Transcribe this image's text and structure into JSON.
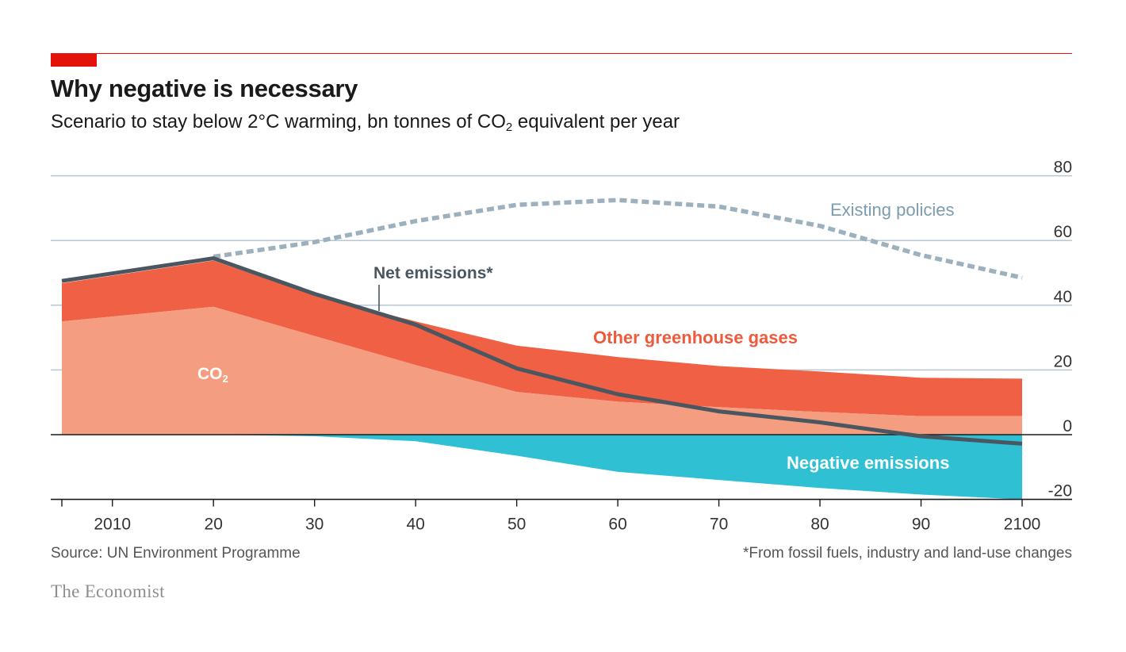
{
  "header": {
    "title": "Why negative is necessary",
    "subtitle_pre": "Scenario to stay below 2°C warming, bn tonnes of CO",
    "subtitle_sub": "2",
    "subtitle_post": " equivalent per year"
  },
  "footer": {
    "source": "Source: UN Environment Programme",
    "footnote": "*From fossil fuels, industry and land-use changes",
    "brand": "The Economist"
  },
  "colors": {
    "accent": "#e3120b",
    "co2": "#f59d80",
    "other_ghg": "#f06045",
    "negative": "#2fc0d4",
    "net_line": "#4a5660",
    "existing_line": "#9cb1bd",
    "gridline": "#b7c7d2",
    "existing_label": "#7d9cad",
    "other_label": "#ef5a3c"
  },
  "chart_data": {
    "type": "area",
    "title": "Why negative is necessary",
    "subtitle": "Scenario to stay below 2°C warming, bn tonnes of CO2 equivalent per year",
    "x": [
      2005,
      2020,
      2030,
      2040,
      2050,
      2060,
      2070,
      2080,
      2090,
      2100
    ],
    "xlim": [
      2005,
      2100
    ],
    "ylim": [
      -20,
      80
    ],
    "yticks": [
      80,
      60,
      40,
      20,
      0,
      -20
    ],
    "y_tick_labels": [
      "80",
      "60",
      "40",
      "20",
      "0",
      "-20"
    ],
    "xticks": [
      2010,
      2020,
      2030,
      2040,
      2050,
      2060,
      2070,
      2080,
      2090,
      2100
    ],
    "x_tick_labels": [
      "2010",
      "20",
      "30",
      "40",
      "50",
      "60",
      "70",
      "80",
      "90",
      "2100"
    ],
    "y_axis_position": "right",
    "grid": true,
    "series": [
      {
        "name": "CO2",
        "label_text": "CO",
        "label_sub": "2",
        "kind": "area-stack-bottom",
        "values": [
          35,
          39.5,
          30.5,
          21.5,
          13.2,
          10.2,
          8.5,
          7,
          5.7,
          5.7
        ]
      },
      {
        "name": "Other greenhouse gases",
        "label_text": "Other greenhouse gases",
        "kind": "area-stack-top",
        "values": [
          11.8,
          14.3,
          12.5,
          13.5,
          14.3,
          13.8,
          12.7,
          12.5,
          11.9,
          11.6
        ]
      },
      {
        "name": "Negative emissions",
        "label_text": "Negative emissions",
        "kind": "area-negative",
        "values": [
          0,
          0,
          -0.5,
          -2,
          -6.5,
          -11.5,
          -14,
          -16.5,
          -18.5,
          -20
        ]
      },
      {
        "name": "Net emissions*",
        "label_text": "Net emissions*",
        "kind": "line",
        "values": [
          47.5,
          54.5,
          43.5,
          34,
          20.5,
          12.5,
          7.2,
          3.8,
          -0.5,
          -2.8
        ]
      },
      {
        "name": "Existing policies",
        "label_text": "Existing policies",
        "kind": "dashed-line",
        "x": [
          2020,
          2030,
          2040,
          2050,
          2060,
          2070,
          2080,
          2090,
          2100
        ],
        "values": [
          55,
          59.5,
          66,
          71,
          72.5,
          70.5,
          64.5,
          55.5,
          48.5
        ]
      }
    ]
  }
}
